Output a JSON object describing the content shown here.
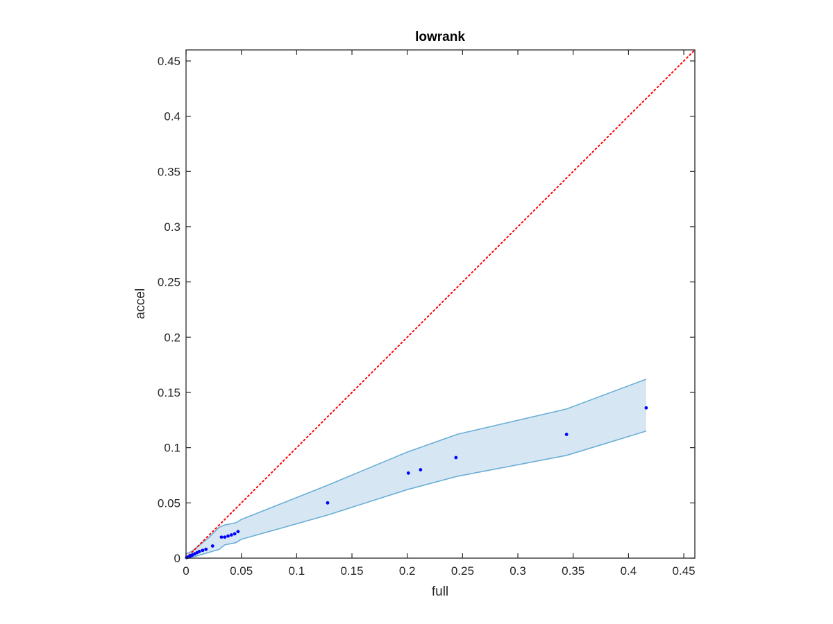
{
  "chart_data": {
    "type": "scatter",
    "title": "lowrank",
    "xlabel": "full",
    "ylabel": "accel",
    "xlim": [
      0,
      0.46
    ],
    "ylim": [
      0,
      0.46
    ],
    "xticks": [
      "0",
      "0.05",
      "0.1",
      "0.15",
      "0.2",
      "0.25",
      "0.3",
      "0.35",
      "0.4",
      "0.45"
    ],
    "yticks": [
      "0",
      "0.05",
      "0.1",
      "0.15",
      "0.2",
      "0.25",
      "0.3",
      "0.35",
      "0.4",
      "0.45"
    ],
    "grid": false,
    "series": [
      {
        "type": "scatter",
        "color": "#0000ff",
        "points": [
          [
            0.0005,
            0.0005
          ],
          [
            0.001,
            0.0008
          ],
          [
            0.002,
            0.001
          ],
          [
            0.003,
            0.0015
          ],
          [
            0.004,
            0.002
          ],
          [
            0.005,
            0.0025
          ],
          [
            0.006,
            0.003
          ],
          [
            0.008,
            0.004
          ],
          [
            0.01,
            0.005
          ],
          [
            0.012,
            0.006
          ],
          [
            0.015,
            0.007
          ],
          [
            0.018,
            0.008
          ],
          [
            0.024,
            0.011
          ],
          [
            0.032,
            0.019
          ],
          [
            0.035,
            0.019
          ],
          [
            0.038,
            0.02
          ],
          [
            0.041,
            0.021
          ],
          [
            0.044,
            0.022
          ],
          [
            0.047,
            0.024
          ],
          [
            0.128,
            0.05
          ],
          [
            0.201,
            0.077
          ],
          [
            0.212,
            0.08
          ],
          [
            0.244,
            0.091
          ],
          [
            0.344,
            0.112
          ],
          [
            0.416,
            0.136
          ]
        ]
      },
      {
        "type": "band",
        "color": "#6baed6",
        "fill": "#d6e7f3",
        "x": [
          0,
          0.005,
          0.01,
          0.02,
          0.03,
          0.035,
          0.045,
          0.05,
          0.128,
          0.2,
          0.245,
          0.344,
          0.416
        ],
        "upper": [
          0.004,
          0.006,
          0.01,
          0.018,
          0.028,
          0.03,
          0.032,
          0.035,
          0.066,
          0.096,
          0.112,
          0.135,
          0.162
        ],
        "lower": [
          0.0,
          0.001,
          0.002,
          0.005,
          0.008,
          0.012,
          0.014,
          0.017,
          0.039,
          0.062,
          0.074,
          0.093,
          0.115
        ]
      },
      {
        "type": "reference-line",
        "color": "#ff0000",
        "style": "dotted",
        "x": [
          0,
          0.46
        ],
        "y": [
          0,
          0.46
        ]
      }
    ]
  }
}
